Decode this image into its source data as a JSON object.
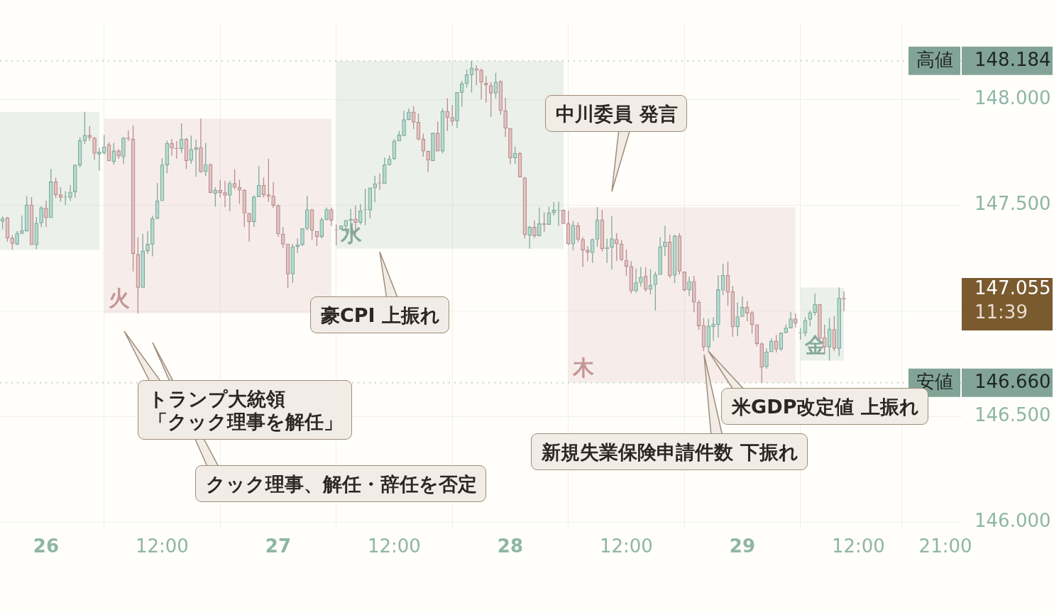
{
  "chart_data": {
    "type": "candlestick",
    "x": [
      "--08-25T19:30",
      "--08-25T20:00",
      "--08-25T20:30",
      "--08-25T21:00",
      "--08-25T21:30",
      "--08-25T22:00",
      "--08-25T22:30",
      "--08-25T23:00",
      "--08-25T23:30",
      "--08-26T00:00",
      "--08-26T00:30",
      "--08-26T01:00",
      "--08-26T01:30",
      "--08-26T02:00",
      "--08-26T02:30",
      "--08-26T03:00",
      "--08-26T03:30",
      "--08-26T04:00",
      "--08-26T04:30",
      "--08-26T05:00",
      "--08-26T05:30",
      "--08-26T06:00",
      "--08-26T06:30",
      "--08-26T07:00",
      "--08-26T07:30",
      "--08-26T08:00",
      "--08-26T08:30",
      "--08-26T09:00",
      "--08-26T09:30",
      "--08-26T10:00",
      "--08-26T10:30",
      "--08-26T11:00",
      "--08-26T11:30",
      "--08-26T12:00",
      "--08-26T12:30",
      "--08-26T13:00",
      "--08-26T13:30",
      "--08-26T14:00",
      "--08-26T14:30",
      "--08-26T15:00",
      "--08-26T15:30",
      "--08-26T16:00",
      "--08-26T16:30",
      "--08-26T17:00",
      "--08-26T17:30",
      "--08-26T18:00",
      "--08-26T18:30",
      "--08-26T19:00",
      "--08-26T19:30",
      "--08-26T20:00",
      "--08-26T20:30",
      "--08-26T21:00",
      "--08-26T21:30",
      "--08-26T22:00",
      "--08-26T22:30",
      "--08-26T23:00",
      "--08-26T23:30",
      "--08-27T00:00",
      "--08-27T00:30",
      "--08-27T01:00",
      "--08-27T01:30",
      "--08-27T02:00",
      "--08-27T02:30",
      "--08-27T03:00",
      "--08-27T03:30",
      "--08-27T04:00",
      "--08-27T04:30",
      "--08-27T05:00",
      "--08-27T05:30",
      "--08-27T06:00",
      "--08-27T06:30",
      "--08-27T07:00",
      "--08-27T07:30",
      "--08-27T08:00",
      "--08-27T08:30",
      "--08-27T09:00",
      "--08-27T09:30",
      "--08-27T10:00",
      "--08-27T10:30",
      "--08-27T11:00",
      "--08-27T11:30",
      "--08-27T12:00",
      "--08-27T12:30",
      "--08-27T13:00",
      "--08-27T13:30",
      "--08-27T14:00",
      "--08-27T14:30",
      "--08-27T15:00",
      "--08-27T15:30",
      "--08-27T16:00",
      "--08-27T16:30",
      "--08-27T17:00",
      "--08-27T17:30",
      "--08-27T18:00",
      "--08-27T18:30",
      "--08-27T19:00",
      "--08-27T19:30",
      "--08-27T20:00",
      "--08-27T20:30",
      "--08-27T21:00",
      "--08-27T21:30",
      "--08-27T22:00",
      "--08-27T22:30",
      "--08-27T23:00",
      "--08-27T23:30",
      "--08-28T00:00",
      "--08-28T00:30",
      "--08-28T01:00",
      "--08-28T01:30",
      "--08-28T02:00",
      "--08-28T02:30",
      "--08-28T03:00",
      "--08-28T03:30",
      "--08-28T04:00",
      "--08-28T04:30",
      "--08-28T05:00",
      "--08-28T05:30",
      "--08-28T06:00",
      "--08-28T06:30",
      "--08-28T07:00",
      "--08-28T07:30",
      "--08-28T08:00",
      "--08-28T08:30",
      "--08-28T09:00",
      "--08-28T09:30",
      "--08-28T10:00",
      "--08-28T10:30",
      "--08-28T11:00",
      "--08-28T11:30",
      "--08-28T12:00",
      "--08-28T12:30",
      "--08-28T13:00",
      "--08-28T13:30",
      "--08-28T14:00",
      "--08-28T14:30",
      "--08-28T15:00",
      "--08-28T15:30",
      "--08-28T16:00",
      "--08-28T16:30",
      "--08-28T17:00",
      "--08-28T17:30",
      "--08-28T18:00",
      "--08-28T18:30",
      "--08-28T19:00",
      "--08-28T19:30",
      "--08-28T20:00",
      "--08-28T20:30",
      "--08-28T21:00",
      "--08-28T21:30",
      "--08-28T22:00",
      "--08-28T22:30",
      "--08-28T23:00",
      "--08-28T23:30",
      "--08-29T00:00",
      "--08-29T00:30",
      "--08-29T01:00",
      "--08-29T01:30",
      "--08-29T02:00",
      "--08-29T02:30",
      "--08-29T03:00",
      "--08-29T03:30",
      "--08-29T04:00",
      "--08-29T04:30",
      "--08-29T05:00",
      "--08-29T05:30",
      "--08-29T06:00",
      "--08-29T06:30",
      "--08-29T07:00",
      "--08-29T07:30",
      "--08-29T08:00",
      "--08-29T08:30",
      "--08-29T09:00",
      "--08-29T09:30",
      "--08-29T10:00",
      "--08-29T10:30"
    ],
    "ohlc": [
      [
        147.425,
        147.448,
        147.386,
        147.438
      ],
      [
        147.442,
        147.445,
        147.328,
        147.345
      ],
      [
        147.345,
        147.359,
        147.289,
        147.319
      ],
      [
        147.316,
        147.378,
        147.312,
        147.367
      ],
      [
        147.367,
        147.452,
        147.363,
        147.38
      ],
      [
        147.379,
        147.544,
        147.376,
        147.502
      ],
      [
        147.502,
        147.538,
        147.313,
        147.313
      ],
      [
        147.313,
        147.445,
        147.292,
        147.415
      ],
      [
        147.416,
        147.495,
        147.397,
        147.489
      ],
      [
        147.486,
        147.522,
        147.398,
        147.441
      ],
      [
        147.441,
        147.673,
        147.441,
        147.611
      ],
      [
        147.611,
        147.631,
        147.534,
        147.55
      ],
      [
        147.55,
        147.586,
        147.517,
        147.537
      ],
      [
        147.538,
        147.567,
        147.501,
        147.54
      ],
      [
        147.537,
        147.596,
        147.52,
        147.563
      ],
      [
        147.563,
        147.691,
        147.536,
        147.691
      ],
      [
        147.691,
        147.822,
        147.68,
        147.806
      ],
      [
        147.806,
        147.942,
        147.79,
        147.832
      ],
      [
        147.832,
        147.875,
        147.806,
        147.822
      ],
      [
        147.819,
        147.824,
        147.715,
        147.745
      ],
      [
        147.742,
        147.773,
        147.664,
        147.752
      ],
      [
        147.749,
        147.833,
        147.741,
        147.777
      ],
      [
        147.787,
        147.798,
        147.71,
        147.71
      ],
      [
        147.707,
        147.795,
        147.693,
        147.758
      ],
      [
        147.758,
        147.766,
        147.72,
        147.733
      ],
      [
        147.729,
        147.823,
        147.696,
        147.819
      ],
      [
        147.819,
        147.855,
        147.805,
        147.815
      ],
      [
        147.813,
        147.878,
        147.187,
        147.271
      ],
      [
        147.268,
        147.349,
        146.989,
        147.111
      ],
      [
        147.111,
        147.365,
        147.111,
        147.284
      ],
      [
        147.284,
        147.378,
        147.271,
        147.316
      ],
      [
        147.316,
        147.451,
        147.258,
        147.438
      ],
      [
        147.438,
        147.605,
        147.433,
        147.521
      ],
      [
        147.521,
        147.723,
        147.521,
        147.691
      ],
      [
        147.691,
        147.806,
        147.651,
        147.793
      ],
      [
        147.793,
        147.814,
        147.735,
        147.771
      ],
      [
        147.771,
        147.804,
        147.721,
        147.768
      ],
      [
        147.768,
        147.888,
        147.748,
        147.813
      ],
      [
        147.813,
        147.819,
        147.671,
        147.71
      ],
      [
        147.713,
        147.83,
        147.696,
        147.765
      ],
      [
        147.765,
        147.811,
        147.635,
        147.774
      ],
      [
        147.774,
        147.91,
        147.654,
        147.658
      ],
      [
        147.659,
        147.795,
        147.639,
        147.694
      ],
      [
        147.694,
        147.698,
        147.56,
        147.56
      ],
      [
        147.556,
        147.585,
        147.494,
        147.572
      ],
      [
        147.572,
        147.621,
        147.538,
        147.56
      ],
      [
        147.56,
        147.615,
        147.491,
        147.547
      ],
      [
        147.547,
        147.615,
        147.472,
        147.604
      ],
      [
        147.604,
        147.67,
        147.576,
        147.585
      ],
      [
        147.585,
        147.621,
        147.507,
        147.572
      ],
      [
        147.572,
        147.576,
        147.398,
        147.463
      ],
      [
        147.463,
        147.463,
        147.328,
        147.422
      ],
      [
        147.422,
        147.547,
        147.398,
        147.54
      ],
      [
        147.54,
        147.686,
        147.54,
        147.595
      ],
      [
        147.595,
        147.631,
        147.537,
        147.55
      ],
      [
        147.55,
        147.721,
        147.517,
        147.543
      ],
      [
        147.543,
        147.609,
        147.488,
        147.499
      ],
      [
        147.499,
        147.504,
        147.351,
        147.364
      ],
      [
        147.364,
        147.397,
        147.297,
        147.316
      ],
      [
        147.317,
        147.317,
        147.109,
        147.175
      ],
      [
        147.175,
        147.317,
        147.133,
        147.304
      ],
      [
        147.304,
        147.343,
        147.274,
        147.313
      ],
      [
        147.313,
        147.39,
        147.307,
        147.39
      ],
      [
        147.39,
        147.545,
        147.381,
        147.48
      ],
      [
        147.48,
        147.483,
        147.336,
        147.381
      ],
      [
        147.377,
        147.377,
        147.307,
        147.352
      ],
      [
        147.352,
        147.442,
        147.342,
        147.432
      ],
      [
        147.432,
        147.49,
        147.429,
        147.48
      ],
      [
        147.48,
        147.49,
        147.403,
        147.429
      ],
      [
        147.385,
        147.409,
        147.31,
        147.383
      ],
      [
        147.387,
        147.403,
        147.384,
        147.403
      ],
      [
        147.4,
        147.429,
        147.371,
        147.429
      ],
      [
        147.429,
        147.483,
        147.365,
        147.435
      ],
      [
        147.435,
        147.499,
        147.361,
        147.419
      ],
      [
        147.419,
        147.506,
        147.409,
        147.474
      ],
      [
        147.479,
        147.579,
        147.406,
        147.481
      ],
      [
        147.477,
        147.583,
        147.438,
        147.583
      ],
      [
        147.583,
        147.64,
        147.515,
        147.602
      ],
      [
        147.606,
        147.65,
        147.573,
        147.604
      ],
      [
        147.602,
        147.727,
        147.602,
        147.692
      ],
      [
        147.692,
        147.736,
        147.688,
        147.72
      ],
      [
        147.72,
        147.813,
        147.714,
        147.804
      ],
      [
        147.804,
        147.852,
        147.804,
        147.833
      ],
      [
        147.829,
        147.948,
        147.829,
        147.906
      ],
      [
        147.906,
        147.958,
        147.903,
        147.942
      ],
      [
        147.942,
        147.97,
        147.861,
        147.893
      ],
      [
        147.893,
        147.935,
        147.807,
        147.813
      ],
      [
        147.813,
        147.839,
        147.73,
        147.756
      ],
      [
        147.756,
        147.759,
        147.656,
        147.714
      ],
      [
        147.711,
        147.842,
        147.711,
        147.842
      ],
      [
        147.842,
        147.897,
        147.756,
        147.756
      ],
      [
        147.756,
        147.958,
        147.746,
        147.945
      ],
      [
        147.945,
        148.007,
        147.852,
        147.916
      ],
      [
        147.916,
        147.974,
        147.877,
        147.897
      ],
      [
        147.9,
        148.034,
        147.865,
        148.034
      ],
      [
        148.034,
        148.089,
        147.967,
        148.076
      ],
      [
        148.076,
        148.143,
        148.057,
        148.118
      ],
      [
        148.118,
        148.184,
        148.034,
        148.15
      ],
      [
        148.147,
        148.163,
        148.069,
        148.14
      ],
      [
        148.14,
        148.147,
        148.002,
        148.083
      ],
      [
        148.079,
        148.111,
        147.986,
        148.07
      ],
      [
        148.067,
        148.083,
        147.919,
        148.031
      ],
      [
        148.031,
        148.127,
        148.006,
        148.083
      ],
      [
        148.086,
        148.092,
        147.929,
        147.948
      ],
      [
        147.948,
        148.009,
        147.823,
        147.865
      ],
      [
        147.865,
        147.865,
        147.695,
        147.724
      ],
      [
        147.724,
        147.778,
        147.695,
        147.746
      ],
      [
        147.746,
        147.752,
        147.634,
        147.634
      ],
      [
        147.631,
        147.634,
        147.342,
        147.361
      ],
      [
        147.358,
        147.403,
        147.294,
        147.397
      ],
      [
        147.397,
        147.429,
        147.345,
        147.355
      ],
      [
        147.355,
        147.49,
        147.355,
        147.413
      ],
      [
        147.413,
        147.467,
        147.374,
        147.409
      ],
      [
        147.409,
        147.493,
        147.409,
        147.464
      ],
      [
        147.464,
        147.515,
        147.451,
        147.477
      ],
      [
        147.476,
        147.518,
        147.403,
        147.478
      ],
      [
        147.477,
        147.48,
        147.413,
        147.413
      ],
      [
        147.413,
        147.475,
        147.31,
        147.317
      ],
      [
        147.317,
        147.426,
        147.287,
        147.406
      ],
      [
        147.403,
        147.419,
        147.326,
        147.339
      ],
      [
        147.339,
        147.349,
        147.208,
        147.288
      ],
      [
        147.288,
        147.307,
        147.235,
        147.278
      ],
      [
        147.275,
        147.342,
        147.227,
        147.339
      ],
      [
        147.339,
        147.491,
        147.304,
        147.432
      ],
      [
        147.432,
        147.478,
        147.281,
        147.294
      ],
      [
        147.294,
        147.342,
        147.227,
        147.301
      ],
      [
        147.301,
        147.448,
        147.195,
        147.342
      ],
      [
        147.339,
        147.368,
        147.236,
        147.317
      ],
      [
        147.317,
        147.336,
        147.236,
        147.243
      ],
      [
        147.24,
        147.291,
        147.166,
        147.211
      ],
      [
        147.211,
        147.236,
        147.083,
        147.095
      ],
      [
        147.095,
        147.201,
        147.086,
        147.134
      ],
      [
        147.134,
        147.208,
        147.115,
        147.16
      ],
      [
        147.166,
        147.208,
        147.092,
        147.102
      ],
      [
        147.102,
        147.198,
        147.079,
        147.121
      ],
      [
        147.124,
        147.185,
        147.002,
        147.172
      ],
      [
        147.172,
        147.349,
        147.172,
        147.304
      ],
      [
        147.304,
        147.403,
        147.259,
        147.326
      ],
      [
        147.326,
        147.361,
        147.156,
        147.166
      ],
      [
        147.169,
        147.361,
        147.131,
        147.355
      ],
      [
        147.355,
        147.368,
        147.172,
        147.188
      ],
      [
        147.185,
        147.185,
        147.092,
        147.099
      ],
      [
        147.099,
        147.163,
        147.07,
        147.14
      ],
      [
        147.14,
        147.166,
        146.993,
        147.041
      ],
      [
        147.041,
        147.051,
        146.91,
        146.929
      ],
      [
        146.932,
        146.967,
        146.81,
        146.829
      ],
      [
        146.829,
        146.963,
        146.81,
        146.928
      ],
      [
        146.925,
        146.97,
        146.858,
        146.938
      ],
      [
        146.935,
        147.169,
        146.874,
        147.101
      ],
      [
        147.098,
        147.223,
        147.076,
        147.169
      ],
      [
        147.169,
        147.233,
        147.024,
        147.088
      ],
      [
        147.092,
        147.117,
        146.877,
        146.925
      ],
      [
        146.925,
        147.04,
        146.88,
        146.973
      ],
      [
        146.973,
        147.069,
        146.973,
        147.018
      ],
      [
        147.018,
        147.047,
        146.951,
        146.989
      ],
      [
        146.992,
        146.999,
        146.893,
        146.935
      ],
      [
        146.935,
        146.935,
        146.832,
        146.845
      ],
      [
        146.845,
        146.851,
        146.66,
        146.733
      ],
      [
        146.736,
        146.822,
        146.726,
        146.806
      ],
      [
        146.806,
        146.87,
        146.806,
        146.858
      ],
      [
        146.858,
        146.887,
        146.803,
        146.819
      ],
      [
        146.819,
        146.896,
        146.81,
        146.896
      ],
      [
        146.896,
        146.935,
        146.896,
        146.919
      ],
      [
        146.919,
        146.995,
        146.919,
        146.963
      ],
      [
        146.963,
        146.989,
        146.922,
        146.941
      ],
      [
        146.895,
        146.919,
        146.864,
        146.897
      ],
      [
        146.896,
        146.97,
        146.88,
        146.954
      ],
      [
        146.96,
        147.002,
        146.928,
        146.992
      ],
      [
        146.992,
        147.082,
        146.979,
        147.031
      ],
      [
        147.031,
        147.031,
        146.858,
        146.87
      ],
      [
        146.874,
        146.935,
        146.797,
        146.829
      ],
      [
        146.829,
        146.967,
        146.765,
        146.915
      ],
      [
        146.912,
        146.976,
        146.81,
        146.822
      ],
      [
        146.822,
        147.111,
        146.787,
        147.06
      ],
      [
        147.06,
        147.092,
        146.999,
        147.055
      ]
    ],
    "xlim": [
      "--08-25T19:14",
      "--08-29T22:41"
    ],
    "xticks": [
      {
        "value": "--08-26T00:00",
        "label": "26"
      },
      {
        "value": "--08-26T12:00",
        "label": "12:00"
      },
      {
        "value": "--08-27T00:00",
        "label": "27"
      },
      {
        "value": "--08-27T12:00",
        "label": "12:00"
      },
      {
        "value": "--08-28T00:00",
        "label": "28"
      },
      {
        "value": "--08-28T12:00",
        "label": "12:00"
      },
      {
        "value": "--08-29T00:00",
        "label": "29"
      },
      {
        "value": "--08-29T12:00",
        "label": "12:00"
      },
      {
        "value": "--08-29T21:00",
        "label": "21:00"
      }
    ],
    "ylim": [
      145.971,
      148.359
    ],
    "yticks": [
      {
        "value": 146,
        "label": "146.000"
      },
      {
        "value": 146.5,
        "label": "146.500"
      },
      {
        "value": 147,
        "label": null
      },
      {
        "value": 147.5,
        "label": "147.500"
      },
      {
        "value": 148,
        "label": "148.000"
      }
    ],
    "grid": true,
    "bands": [
      {
        "axis": "x",
        "from": "--08-25T06:00",
        "to": "--08-26T05:30",
        "color": "#87a99c"
      },
      {
        "axis": "x",
        "from": "--08-26T06:00",
        "to": "--08-27T05:30",
        "label": "火",
        "color": "#c59595"
      },
      {
        "axis": "x",
        "from": "--08-27T06:00",
        "to": "--08-28T05:30",
        "label": "水",
        "color": "#87a99c"
      },
      {
        "axis": "x",
        "from": "--08-28T06:00",
        "to": "--08-29T05:30",
        "label": "木",
        "color": "#c59595"
      },
      {
        "axis": "x",
        "from": "--08-29T06:00",
        "to": "--08-29T10:30",
        "label": "金",
        "color": "#87a99c"
      }
    ],
    "ref_lines": [
      {
        "axis": "y",
        "value": 148.184,
        "label": "高値 148.184",
        "line_style": "dotted"
      },
      {
        "axis": "y",
        "value": 146.66,
        "label": "安値 146.660",
        "line_style": "dotted"
      }
    ],
    "annotations": [
      "トランプ大統領「クック理事を解任」",
      "クック理事、解任・辞任を否定",
      "豪CPI 上振れ",
      "中川委員 発言",
      "新規失業保険申請件数 下振れ",
      "米GDP改定値 上振れ",
      "147.055",
      "11:39"
    ]
  }
}
